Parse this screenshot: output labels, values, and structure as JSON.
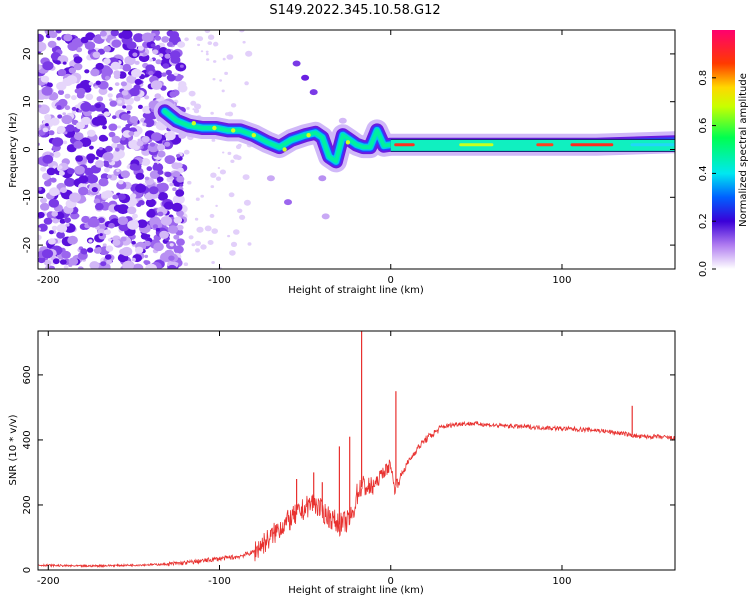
{
  "page_title": "S149.2022.345.10.58.G12",
  "chart_data": [
    {
      "type": "heatmap",
      "title": "S149.2022.345.10.58.G12",
      "xlabel": "Height of straight line (km)",
      "ylabel": "Frequency (Hz)",
      "xlim": [
        -206,
        166
      ],
      "ylim": [
        -25,
        25
      ],
      "xticks": [
        -200,
        -100,
        0,
        100
      ],
      "xtick_labels": [
        "-200",
        "-100",
        "0",
        "100"
      ],
      "yticks": [
        -20,
        -10,
        0,
        10,
        20
      ],
      "ytick_labels": [
        "-20",
        "-10",
        "0",
        "10",
        "20"
      ],
      "colorbar": {
        "label": "Normalized spectral amplitude",
        "range": [
          0,
          1
        ],
        "ticks": [
          0.0,
          0.2,
          0.4,
          0.6,
          0.8
        ],
        "tick_labels": [
          "0.0",
          "0.2",
          "0.4",
          "0.6",
          "0.8"
        ]
      },
      "ridge": {
        "x": [
          -132,
          -125,
          -118,
          -110,
          -102,
          -95,
          -88,
          -80,
          -72,
          -65,
          -58,
          -50,
          -44,
          -40,
          -36,
          -32,
          -28,
          -24,
          -20,
          -16,
          -12,
          -8,
          -4,
          0,
          10,
          40,
          80,
          120,
          166
        ],
        "y": [
          8,
          6,
          5,
          4.5,
          4.5,
          4,
          4,
          3,
          1.5,
          0.5,
          2,
          3,
          3.5,
          2.5,
          -1.5,
          -2.5,
          3,
          2,
          1,
          0.5,
          0.5,
          4,
          0.8,
          1,
          1,
          1,
          1,
          1,
          1.5
        ]
      }
    },
    {
      "type": "line",
      "xlabel": "Height of straight line (km)",
      "ylabel": "SNR (10 * v/v)",
      "xlim": [
        -206,
        166
      ],
      "ylim": [
        0,
        735
      ],
      "xticks": [
        -200,
        -100,
        0,
        100
      ],
      "xtick_labels": [
        "-200",
        "-100",
        "0",
        "100"
      ],
      "yticks": [
        0,
        200,
        400,
        600
      ],
      "ytick_labels": [
        "0",
        "200",
        "400",
        "600"
      ],
      "color": "#e8312f",
      "series": [
        {
          "x": [
            -206,
            -180,
            -150,
            -130,
            -120,
            -110,
            -100,
            -90,
            -80,
            -75,
            -70,
            -65,
            -60,
            -55,
            -50,
            -45,
            -40,
            -35,
            -30,
            -25,
            -22,
            -20,
            -18,
            -16,
            -12,
            -8,
            -5,
            -2,
            0,
            2,
            5,
            10,
            15,
            20,
            25,
            30,
            40,
            50,
            60,
            80,
            100,
            120,
            135,
            140,
            145,
            155,
            166
          ],
          "y": [
            15,
            12,
            15,
            18,
            22,
            28,
            35,
            40,
            55,
            80,
            100,
            130,
            150,
            170,
            190,
            210,
            180,
            160,
            140,
            150,
            170,
            230,
            250,
            260,
            250,
            270,
            300,
            310,
            330,
            250,
            280,
            330,
            370,
            400,
            420,
            440,
            450,
            450,
            445,
            440,
            435,
            430,
            420,
            415,
            410,
            410,
            405
          ]
        }
      ],
      "spikes": [
        {
          "x": -55,
          "y": 280
        },
        {
          "x": -45,
          "y": 300
        },
        {
          "x": -40,
          "y": 270
        },
        {
          "x": -30,
          "y": 380
        },
        {
          "x": -24,
          "y": 410
        },
        {
          "x": -17,
          "y": 735
        },
        {
          "x": 3,
          "y": 550
        },
        {
          "x": 141,
          "y": 505
        }
      ]
    }
  ]
}
